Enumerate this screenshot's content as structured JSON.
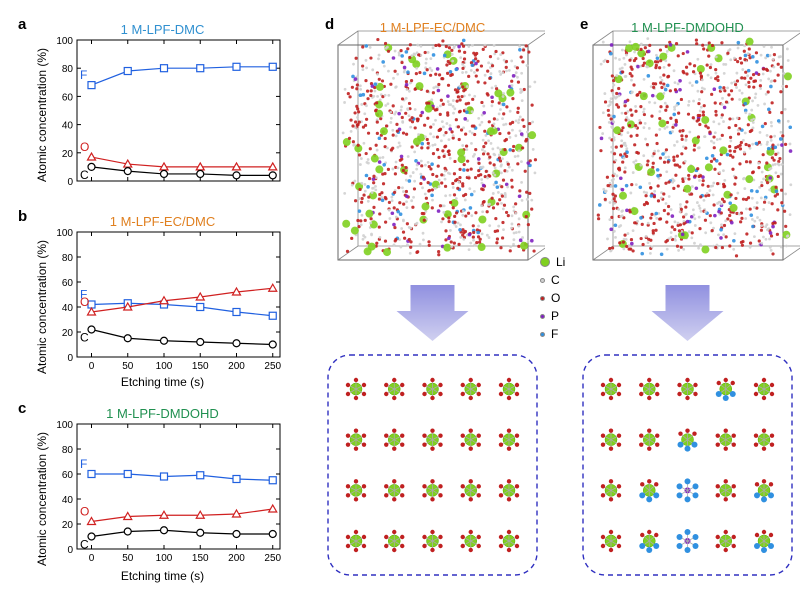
{
  "panels": {
    "a_label": "a",
    "b_label": "b",
    "c_label": "c",
    "d_label": "d",
    "e_label": "e"
  },
  "chart_common": {
    "ylabel": "Atomic concentration (%)",
    "xlabel": "Etching time (s)",
    "xlim": [
      -20,
      260
    ],
    "ylim": [
      0,
      100
    ],
    "xticks": [
      0,
      50,
      100,
      150,
      200,
      250
    ],
    "yticks": [
      0,
      20,
      40,
      60,
      80,
      100
    ],
    "grid_color": "#ffffff",
    "axis_color": "#000000",
    "tick_fontsize": 10,
    "label_fontsize": 12,
    "line_width": 1.2,
    "marker_size": 6,
    "series_colors": {
      "F": "#2060e0",
      "O": "#d02020",
      "C": "#000000"
    },
    "series_markers": {
      "F": "square",
      "O": "triangle",
      "C": "circle"
    },
    "trace_labels": {
      "F": "F",
      "O": "O",
      "C": "C"
    }
  },
  "chart_a": {
    "title": "1 M-LPF-DMC",
    "title_color": "#3090d0",
    "x": [
      0,
      50,
      100,
      150,
      200,
      250
    ],
    "F": [
      68,
      78,
      80,
      80,
      81,
      81
    ],
    "O": [
      17,
      12,
      10,
      10,
      10,
      10
    ],
    "C": [
      10,
      7,
      5,
      5,
      4,
      4
    ]
  },
  "chart_b": {
    "title": "1 M-LPF-EC/DMC",
    "title_color": "#e08020",
    "x": [
      0,
      50,
      100,
      150,
      200,
      250
    ],
    "F": [
      42,
      43,
      42,
      40,
      36,
      33
    ],
    "O": [
      36,
      40,
      45,
      48,
      52,
      55
    ],
    "C": [
      22,
      15,
      13,
      12,
      11,
      10
    ]
  },
  "chart_c": {
    "title": "1 M-LPF-DMDOHD",
    "title_color": "#209050",
    "x": [
      0,
      50,
      100,
      150,
      200,
      250
    ],
    "F": [
      60,
      60,
      58,
      59,
      56,
      55
    ],
    "O": [
      22,
      26,
      27,
      27,
      28,
      32
    ],
    "C": [
      10,
      14,
      15,
      13,
      12,
      12
    ]
  },
  "simulation_d": {
    "title": "1 M-LPF-EC/DMC",
    "title_color": "#e08020"
  },
  "simulation_e": {
    "title": "1 M-LPF-DMDOHD",
    "title_color": "#209050"
  },
  "atom_legend": {
    "items": [
      {
        "label": "Li",
        "color": "#80d020",
        "size": 10
      },
      {
        "label": "C",
        "color": "#d0d0d0",
        "size": 5
      },
      {
        "label": "O",
        "color": "#c02020",
        "size": 5
      },
      {
        "label": "P",
        "color": "#8020c0",
        "size": 5
      },
      {
        "label": "F",
        "color": "#3090e0",
        "size": 5
      }
    ]
  },
  "arrow_color_top": "#9090e0",
  "arrow_color_bottom": "#d0d0f0",
  "schematic_border": "#3030c0"
}
